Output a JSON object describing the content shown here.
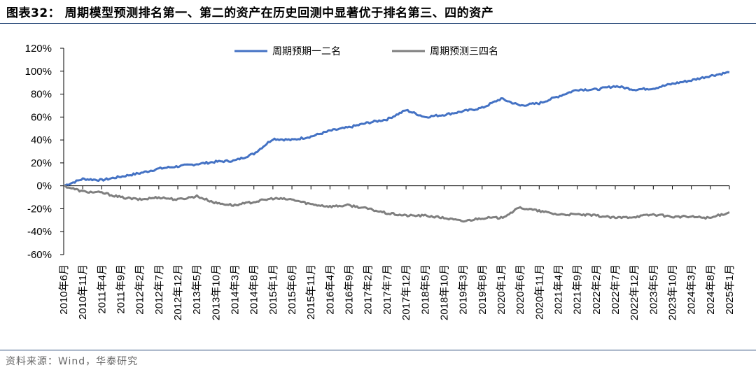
{
  "title": "图表32：  周期模型预测排名第一、第二的资产在历史回测中显著优于排名第三、四的资产",
  "source": "资料来源：Wind，华泰研究",
  "chart_data": {
    "type": "line",
    "title": "",
    "xlabel": "",
    "ylabel": "",
    "ylim": [
      -0.6,
      1.2
    ],
    "y_ticks": [
      "120%",
      "100%",
      "80%",
      "60%",
      "40%",
      "20%",
      "0%",
      "-20%",
      "-40%",
      "-60%"
    ],
    "y_tick_values": [
      1.2,
      1.0,
      0.8,
      0.6,
      0.4,
      0.2,
      0.0,
      -0.2,
      -0.4,
      -0.6
    ],
    "x_categories": [
      "2010年6月",
      "2010年11月",
      "2011年4月",
      "2011年9月",
      "2012年2月",
      "2012年7月",
      "2012年12月",
      "2013年5月",
      "2013年10月",
      "2014年3月",
      "2014年8月",
      "2015年1月",
      "2015年6月",
      "2015年11月",
      "2016年4月",
      "2016年9月",
      "2017年2月",
      "2017年7月",
      "2017年12月",
      "2018年5月",
      "2018年10月",
      "2019年3月",
      "2019年8月",
      "2020年1月",
      "2020年6月",
      "2020年11月",
      "2021年4月",
      "2021年9月",
      "2022年2月",
      "2022年7月",
      "2022年12月",
      "2023年5月",
      "2023年10月",
      "2024年3月",
      "2024年8月",
      "2025年1月"
    ],
    "grid": false,
    "legend": "top-center",
    "series": [
      {
        "name": "周期预期一二名",
        "color": "#4472c4",
        "values": [
          0.0,
          0.06,
          0.05,
          0.08,
          0.11,
          0.15,
          0.17,
          0.19,
          0.21,
          0.22,
          0.28,
          0.41,
          0.4,
          0.43,
          0.48,
          0.51,
          0.55,
          0.58,
          0.66,
          0.6,
          0.62,
          0.65,
          0.68,
          0.76,
          0.7,
          0.72,
          0.78,
          0.84,
          0.84,
          0.87,
          0.84,
          0.85,
          0.89,
          0.92,
          0.96,
          0.99
        ]
      },
      {
        "name": "周期预测三四名",
        "color": "#7f7f7f",
        "values": [
          0.0,
          -0.05,
          -0.06,
          -0.1,
          -0.12,
          -0.1,
          -0.12,
          -0.09,
          -0.15,
          -0.17,
          -0.14,
          -0.11,
          -0.12,
          -0.16,
          -0.18,
          -0.17,
          -0.2,
          -0.24,
          -0.26,
          -0.26,
          -0.28,
          -0.31,
          -0.28,
          -0.28,
          -0.19,
          -0.22,
          -0.25,
          -0.25,
          -0.26,
          -0.28,
          -0.27,
          -0.25,
          -0.27,
          -0.27,
          -0.28,
          -0.23
        ]
      }
    ]
  }
}
